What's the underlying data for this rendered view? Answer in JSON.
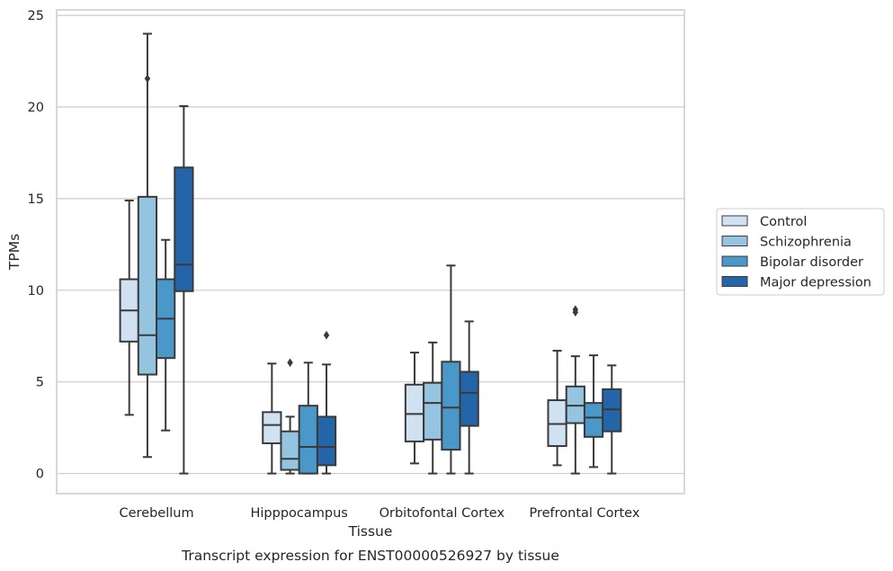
{
  "chart_data": {
    "type": "box",
    "title": "",
    "caption": "Transcript expression for ENST00000526927 by tissue",
    "xlabel": "Tissue",
    "ylabel": "TPMs",
    "ylim": [
      -1.1,
      25.3
    ],
    "yticks": [
      0,
      5,
      10,
      15,
      20,
      25
    ],
    "grid": "horizontal",
    "legend_position": "right",
    "categories": [
      "Cerebellum",
      "Hipppocampus",
      "Orbitofontal Cortex",
      "Prefrontal Cortex"
    ],
    "series": [
      {
        "name": "Control",
        "color": "#d0e1f2",
        "boxes": [
          {
            "whislo": 3.2,
            "q1": 7.2,
            "med": 8.9,
            "q3": 10.6,
            "whishi": 14.9,
            "fliers": []
          },
          {
            "whislo": 0.0,
            "q1": 1.65,
            "med": 2.65,
            "q3": 3.35,
            "whishi": 6.0,
            "fliers": []
          },
          {
            "whislo": 0.55,
            "q1": 1.75,
            "med": 3.25,
            "q3": 4.85,
            "whishi": 6.6,
            "fliers": []
          },
          {
            "whislo": 0.45,
            "q1": 1.5,
            "med": 2.7,
            "q3": 4.0,
            "whishi": 6.7,
            "fliers": []
          }
        ]
      },
      {
        "name": "Schizophrenia",
        "color": "#94c4df",
        "boxes": [
          {
            "whislo": 0.9,
            "q1": 5.4,
            "med": 7.55,
            "q3": 15.1,
            "whishi": 24.0,
            "fliers": [
              21.55
            ]
          },
          {
            "whislo": 0.0,
            "q1": 0.2,
            "med": 0.8,
            "q3": 2.3,
            "whishi": 3.1,
            "fliers": [
              6.05
            ]
          },
          {
            "whislo": 0.0,
            "q1": 1.85,
            "med": 3.85,
            "q3": 4.95,
            "whishi": 7.15,
            "fliers": []
          },
          {
            "whislo": 0.0,
            "q1": 2.75,
            "med": 3.7,
            "q3": 4.75,
            "whishi": 6.4,
            "fliers": [
              8.8,
              8.95
            ]
          }
        ]
      },
      {
        "name": "Bipolar disorder",
        "color": "#4a98c9",
        "boxes": [
          {
            "whislo": 2.35,
            "q1": 6.3,
            "med": 8.45,
            "q3": 10.6,
            "whishi": 12.75,
            "fliers": []
          },
          {
            "whislo": 0.0,
            "q1": 0.0,
            "med": 1.45,
            "q3": 3.7,
            "whishi": 6.05,
            "fliers": []
          },
          {
            "whislo": 0.0,
            "q1": 1.3,
            "med": 3.6,
            "q3": 6.1,
            "whishi": 11.35,
            "fliers": []
          },
          {
            "whislo": 0.35,
            "q1": 2.0,
            "med": 3.05,
            "q3": 3.85,
            "whishi": 6.45,
            "fliers": []
          }
        ]
      },
      {
        "name": "Major depression",
        "color": "#2464a8",
        "boxes": [
          {
            "whislo": 0.0,
            "q1": 9.95,
            "med": 11.4,
            "q3": 16.7,
            "whishi": 20.05,
            "fliers": []
          },
          {
            "whislo": 0.0,
            "q1": 0.45,
            "med": 1.45,
            "q3": 3.1,
            "whishi": 5.95,
            "fliers": [
              7.55
            ]
          },
          {
            "whislo": 0.0,
            "q1": 2.6,
            "med": 4.4,
            "q3": 5.55,
            "whishi": 8.3,
            "fliers": []
          },
          {
            "whislo": 0.0,
            "q1": 2.3,
            "med": 3.5,
            "q3": 4.6,
            "whishi": 5.9,
            "fliers": []
          }
        ]
      }
    ]
  }
}
